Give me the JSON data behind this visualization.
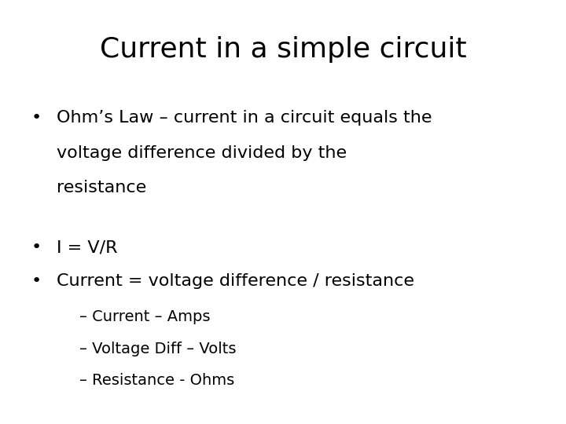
{
  "title": "Current in a simple circuit",
  "background_color": "#ffffff",
  "text_color": "#000000",
  "title_fontsize": 26,
  "body_fontsize": 16,
  "sub_fontsize": 14,
  "bullet1_line1": "Ohm’s Law – current in a circuit equals the",
  "bullet1_line2": "voltage difference divided by the",
  "bullet1_line3": "resistance",
  "bullet2": "I = V/R",
  "bullet3": "Current = voltage difference / resistance",
  "sub1": "– Current – Amps",
  "sub2": "– Voltage Diff – Volts",
  "sub3": "– Resistance - Ohms",
  "font_family": "DejaVu Sans"
}
